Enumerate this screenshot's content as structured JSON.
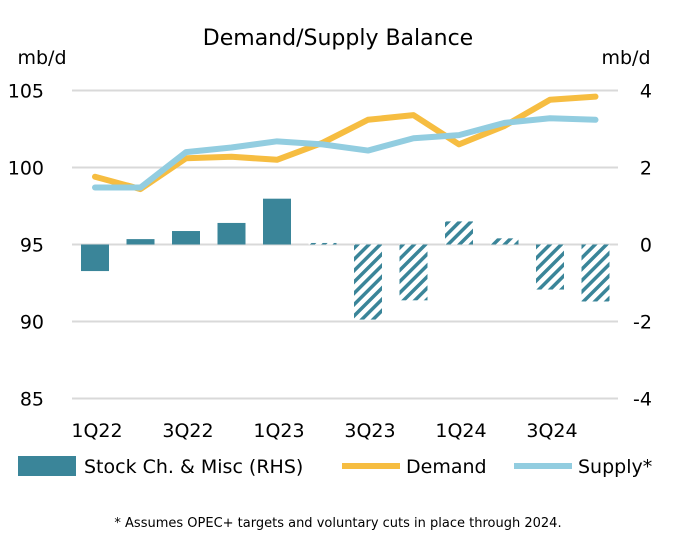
{
  "chart_data": {
    "type": "bar+line",
    "title": "Demand/Supply Balance",
    "ylabel_left": "mb/d",
    "ylabel_right": "mb/d",
    "ylim_left": [
      85,
      105
    ],
    "ylim_right": [
      -4,
      4
    ],
    "yticks_left": [
      "85",
      "90",
      "95",
      "100",
      "105"
    ],
    "yticks_right": [
      "-4",
      "-2",
      "0",
      "2",
      "4"
    ],
    "categories": [
      "1Q22",
      "2Q22",
      "3Q22",
      "4Q22",
      "1Q23",
      "2Q23",
      "3Q23",
      "4Q23",
      "1Q24",
      "2Q24",
      "3Q24",
      "4Q24"
    ],
    "xtick_labels": [
      "1Q22",
      "3Q22",
      "1Q23",
      "3Q23",
      "1Q24",
      "3Q24"
    ],
    "grid": true,
    "forecast_start_index": 5,
    "series": [
      {
        "name": "Stock Ch. & Misc (RHS)",
        "type": "bar",
        "axis": "right",
        "color": "#3a8599",
        "values": [
          -0.69,
          0.14,
          0.35,
          0.56,
          1.19,
          0.04,
          -1.95,
          -1.45,
          0.6,
          0.16,
          -1.17,
          -1.48
        ]
      },
      {
        "name": "Demand",
        "type": "line",
        "axis": "left",
        "color": "#f6bd41",
        "values": [
          99.4,
          98.6,
          100.6,
          100.7,
          100.5,
          101.6,
          103.1,
          103.4,
          101.5,
          102.7,
          104.4,
          104.6
        ]
      },
      {
        "name": "Supply*",
        "type": "line",
        "axis": "left",
        "color": "#92cde0",
        "values": [
          98.7,
          98.7,
          101.0,
          101.3,
          101.7,
          101.5,
          101.1,
          101.9,
          102.1,
          102.9,
          103.2,
          103.1
        ]
      }
    ],
    "legend_position": "bottom",
    "footnote": "* Assumes OPEC+ targets and voluntary cuts in place through 2024."
  }
}
